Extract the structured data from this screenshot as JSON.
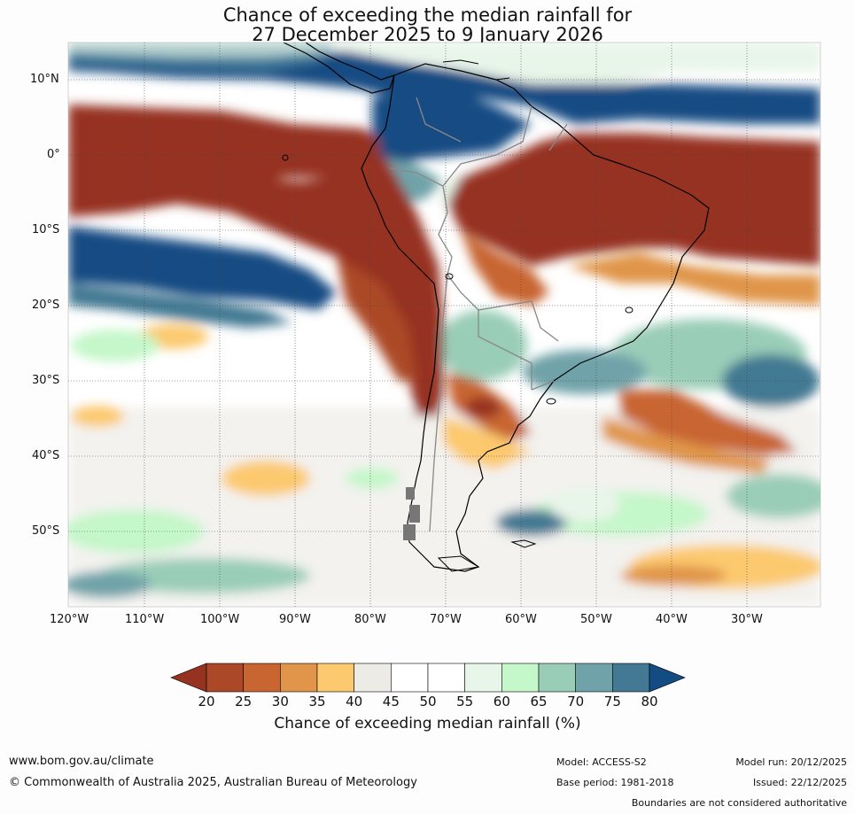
{
  "title": {
    "line1": "Chance of exceeding the median rainfall for",
    "line2": "27 December 2025 to 9 January 2026"
  },
  "map": {
    "region": "South America",
    "lat_labels": [
      "10°N",
      "0°",
      "10°S",
      "20°S",
      "30°S",
      "40°S",
      "50°S"
    ],
    "lon_labels": [
      "120°W",
      "110°W",
      "100°W",
      "90°W",
      "80°W",
      "70°W",
      "60°W",
      "50°W",
      "40°W",
      "30°W"
    ],
    "lat_range": [
      -60,
      15
    ],
    "lon_range": [
      -120,
      -20
    ]
  },
  "legend": {
    "title": "Chance of exceeding median rainfall (%)",
    "ticks": [
      "20",
      "25",
      "30",
      "35",
      "40",
      "45",
      "50",
      "55",
      "60",
      "65",
      "70",
      "75",
      "80"
    ],
    "colors": [
      "#963320",
      "#ab4828",
      "#c86530",
      "#e0954a",
      "#fcc96e",
      "#edebe6",
      "#ffffff",
      "#ffffff",
      "#e8f5e9",
      "#c4f7c9",
      "#9acdb8",
      "#6fa3a9",
      "#437993",
      "#134b83"
    ]
  },
  "footer": {
    "website": "www.bom.gov.au/climate",
    "copyright": "© Commonwealth of Australia 2025, Australian Bureau of Meteorology",
    "model": "Model: ACCESS-S2",
    "base_period": "Base period: 1981-2018",
    "model_run": "Model run: 20/12/2025",
    "issued": "Issued: 22/12/2025",
    "disclaimer": "Boundaries are not considered authoritative"
  }
}
